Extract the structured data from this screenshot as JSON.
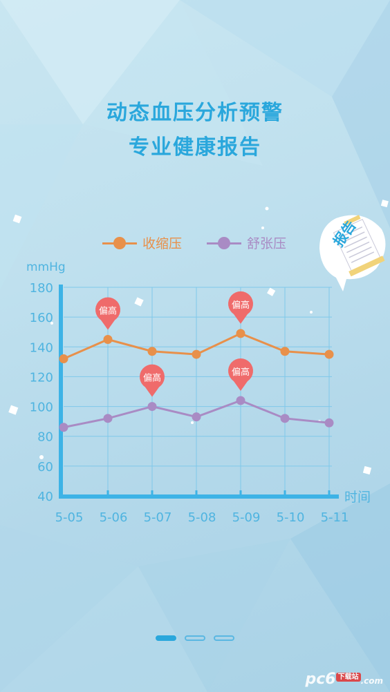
{
  "headline": {
    "line1": "动态血压分析预警",
    "line2": "专业健康报告"
  },
  "badge": {
    "text": "报告"
  },
  "legend": {
    "systolic": {
      "label": "收缩压",
      "color": "#e8904a"
    },
    "diastolic": {
      "label": "舒张压",
      "color": "#a98bc4"
    }
  },
  "alert_label": "偏高",
  "watermark": {
    "text": "pc6",
    "suffix": "下载站",
    "tld": ".com"
  },
  "pager": {
    "count": 3,
    "active": 0
  },
  "chart_data": {
    "type": "line",
    "ylabel": "mmHg",
    "xlabel": "时间",
    "ylim": [
      40,
      180
    ],
    "yticks": [
      40,
      60,
      80,
      100,
      120,
      140,
      160,
      180
    ],
    "categories": [
      "5-05",
      "5-06",
      "5-07",
      "5-08",
      "5-09",
      "5-10",
      "5-11"
    ],
    "grid": true,
    "legend_position": "top",
    "series": [
      {
        "name": "收缩压",
        "color": "#e8904a",
        "values": [
          132,
          145,
          137,
          135,
          149,
          137,
          135
        ]
      },
      {
        "name": "舒张压",
        "color": "#a98bc4",
        "values": [
          86,
          92,
          100,
          93,
          104,
          92,
          89
        ]
      }
    ],
    "annotations": [
      {
        "text": "偏高",
        "series": "收缩压",
        "category": "5-06"
      },
      {
        "text": "偏高",
        "series": "舒张压",
        "category": "5-07"
      },
      {
        "text": "偏高",
        "series": "收缩压",
        "category": "5-09"
      },
      {
        "text": "偏高",
        "series": "舒张压",
        "category": "5-09"
      }
    ]
  }
}
